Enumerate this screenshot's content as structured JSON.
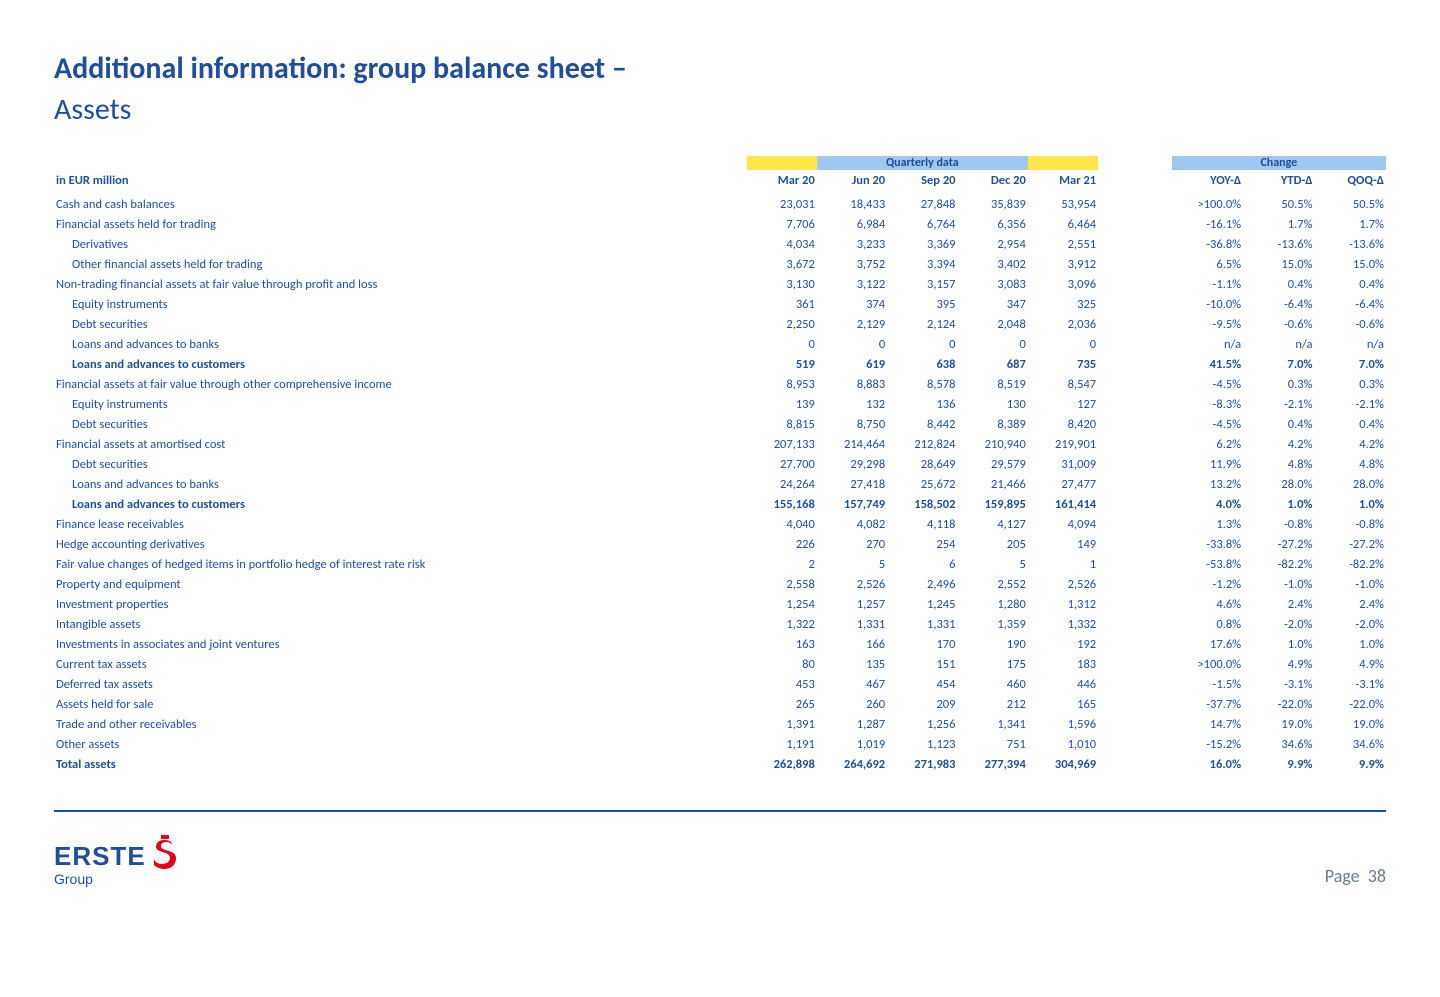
{
  "title": {
    "line1": "Additional information: group balance sheet –",
    "line2": "Assets"
  },
  "table": {
    "unit_label": "in EUR million",
    "group_headers": {
      "quarterly": "Quarterly data",
      "change": "Change"
    },
    "period_headers": [
      "Mar 20",
      "Jun 20",
      "Sep 20",
      "Dec 20",
      "Mar 21"
    ],
    "change_headers": [
      "YOY-Δ",
      "YTD-Δ",
      "QOQ-Δ"
    ],
    "colors": {
      "brand_blue": "#1f4e9c",
      "band_yellow": "#ffe74a",
      "band_blue": "#9fc7ef",
      "logo_red": "#e3001b",
      "page_grey": "#6b7b8c"
    },
    "rows": [
      {
        "label": "Cash and cash balances",
        "q": [
          "23,031",
          "18,433",
          "27,848",
          "35,839",
          "53,954"
        ],
        "c": [
          ">100.0%",
          "50.5%",
          "50.5%"
        ]
      },
      {
        "label": "Financial assets held for trading",
        "q": [
          "7,706",
          "6,984",
          "6,764",
          "6,356",
          "6,464"
        ],
        "c": [
          "-16.1%",
          "1.7%",
          "1.7%"
        ]
      },
      {
        "label": "Derivatives",
        "indent": true,
        "q": [
          "4,034",
          "3,233",
          "3,369",
          "2,954",
          "2,551"
        ],
        "c": [
          "-36.8%",
          "-13.6%",
          "-13.6%"
        ]
      },
      {
        "label": "Other financial assets held for trading",
        "indent": true,
        "q": [
          "3,672",
          "3,752",
          "3,394",
          "3,402",
          "3,912"
        ],
        "c": [
          "6.5%",
          "15.0%",
          "15.0%"
        ]
      },
      {
        "label": "Non-trading financial assets at fair value through profit and loss",
        "q": [
          "3,130",
          "3,122",
          "3,157",
          "3,083",
          "3,096"
        ],
        "c": [
          "-1.1%",
          "0.4%",
          "0.4%"
        ]
      },
      {
        "label": "Equity instruments",
        "indent": true,
        "q": [
          "361",
          "374",
          "395",
          "347",
          "325"
        ],
        "c": [
          "-10.0%",
          "-6.4%",
          "-6.4%"
        ]
      },
      {
        "label": "Debt securities",
        "indent": true,
        "q": [
          "2,250",
          "2,129",
          "2,124",
          "2,048",
          "2,036"
        ],
        "c": [
          "-9.5%",
          "-0.6%",
          "-0.6%"
        ]
      },
      {
        "label": "Loans and advances to banks",
        "indent": true,
        "q": [
          "0",
          "0",
          "0",
          "0",
          "0"
        ],
        "c": [
          "n/a",
          "n/a",
          "n/a"
        ]
      },
      {
        "label": "Loans and advances to customers",
        "indent": true,
        "bold": true,
        "q": [
          "519",
          "619",
          "638",
          "687",
          "735"
        ],
        "c": [
          "41.5%",
          "7.0%",
          "7.0%"
        ]
      },
      {
        "label": "Financial assets at fair value through other comprehensive income",
        "q": [
          "8,953",
          "8,883",
          "8,578",
          "8,519",
          "8,547"
        ],
        "c": [
          "-4.5%",
          "0.3%",
          "0.3%"
        ]
      },
      {
        "label": "Equity instruments",
        "indent": true,
        "q": [
          "139",
          "132",
          "136",
          "130",
          "127"
        ],
        "c": [
          "-8.3%",
          "-2.1%",
          "-2.1%"
        ]
      },
      {
        "label": "Debt securities",
        "indent": true,
        "q": [
          "8,815",
          "8,750",
          "8,442",
          "8,389",
          "8,420"
        ],
        "c": [
          "-4.5%",
          "0.4%",
          "0.4%"
        ]
      },
      {
        "label": "Financial assets at amortised cost",
        "q": [
          "207,133",
          "214,464",
          "212,824",
          "210,940",
          "219,901"
        ],
        "c": [
          "6.2%",
          "4.2%",
          "4.2%"
        ]
      },
      {
        "label": "Debt securities",
        "indent": true,
        "q": [
          "27,700",
          "29,298",
          "28,649",
          "29,579",
          "31,009"
        ],
        "c": [
          "11.9%",
          "4.8%",
          "4.8%"
        ]
      },
      {
        "label": "Loans and advances to banks",
        "indent": true,
        "q": [
          "24,264",
          "27,418",
          "25,672",
          "21,466",
          "27,477"
        ],
        "c": [
          "13.2%",
          "28.0%",
          "28.0%"
        ]
      },
      {
        "label": "Loans and advances to customers",
        "indent": true,
        "bold": true,
        "q": [
          "155,168",
          "157,749",
          "158,502",
          "159,895",
          "161,414"
        ],
        "c": [
          "4.0%",
          "1.0%",
          "1.0%"
        ]
      },
      {
        "label": "Finance lease receivables",
        "q": [
          "4,040",
          "4,082",
          "4,118",
          "4,127",
          "4,094"
        ],
        "c": [
          "1.3%",
          "-0.8%",
          "-0.8%"
        ]
      },
      {
        "label": "Hedge accounting derivatives",
        "q": [
          "226",
          "270",
          "254",
          "205",
          "149"
        ],
        "c": [
          "-33.8%",
          "-27.2%",
          "-27.2%"
        ]
      },
      {
        "label": "Fair value changes of hedged items in portfolio hedge of interest rate risk",
        "q": [
          "2",
          "5",
          "6",
          "5",
          "1"
        ],
        "c": [
          "-53.8%",
          "-82.2%",
          "-82.2%"
        ]
      },
      {
        "label": "Property and equipment",
        "q": [
          "2,558",
          "2,526",
          "2,496",
          "2,552",
          "2,526"
        ],
        "c": [
          "-1.2%",
          "-1.0%",
          "-1.0%"
        ]
      },
      {
        "label": "Investment properties",
        "q": [
          "1,254",
          "1,257",
          "1,245",
          "1,280",
          "1,312"
        ],
        "c": [
          "4.6%",
          "2.4%",
          "2.4%"
        ]
      },
      {
        "label": "Intangible assets",
        "q": [
          "1,322",
          "1,331",
          "1,331",
          "1,359",
          "1,332"
        ],
        "c": [
          "0.8%",
          "-2.0%",
          "-2.0%"
        ]
      },
      {
        "label": "Investments in associates and joint ventures",
        "q": [
          "163",
          "166",
          "170",
          "190",
          "192"
        ],
        "c": [
          "17.6%",
          "1.0%",
          "1.0%"
        ]
      },
      {
        "label": "Current tax assets",
        "q": [
          "80",
          "135",
          "151",
          "175",
          "183"
        ],
        "c": [
          ">100.0%",
          "4.9%",
          "4.9%"
        ]
      },
      {
        "label": "Deferred tax assets",
        "q": [
          "453",
          "467",
          "454",
          "460",
          "446"
        ],
        "c": [
          "-1.5%",
          "-3.1%",
          "-3.1%"
        ]
      },
      {
        "label": "Assets held for sale",
        "q": [
          "265",
          "260",
          "209",
          "212",
          "165"
        ],
        "c": [
          "-37.7%",
          "-22.0%",
          "-22.0%"
        ]
      },
      {
        "label": "Trade and other receivables",
        "q": [
          "1,391",
          "1,287",
          "1,256",
          "1,341",
          "1,596"
        ],
        "c": [
          "14.7%",
          "19.0%",
          "19.0%"
        ]
      },
      {
        "label": "Other assets",
        "q": [
          "1,191",
          "1,019",
          "1,123",
          "751",
          "1,010"
        ],
        "c": [
          "-15.2%",
          "34.6%",
          "34.6%"
        ]
      },
      {
        "label": "Total assets",
        "bold": true,
        "q": [
          "262,898",
          "264,692",
          "271,983",
          "277,394",
          "304,969"
        ],
        "c": [
          "16.0%",
          "9.9%",
          "9.9%"
        ]
      }
    ]
  },
  "footer": {
    "logo_main": "ERSTE",
    "logo_sub": "Group",
    "page_label": "Page",
    "page_number": "38"
  }
}
